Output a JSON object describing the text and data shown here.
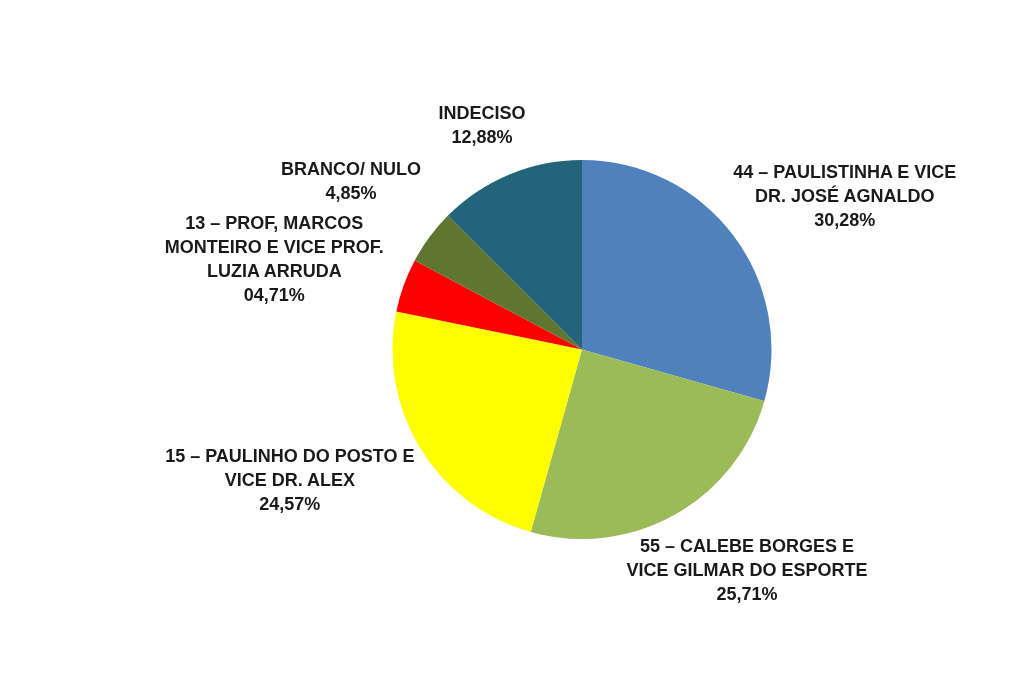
{
  "chart_data": {
    "type": "pie",
    "categories": [
      "44 – PAULISTINHA E VICE DR. JOSÉ AGNALDO",
      "55 – CALEBE BORGES E VICE GILMAR DO ESPORTE",
      "15 – PAULINHO DO POSTO E VICE DR. ALEX",
      "13 – PROF, MARCOS MONTEIRO E VICE PROF. LUZIA ARRUDA",
      "BRANCO/ NULO",
      "INDECISO"
    ],
    "values": [
      30.28,
      25.71,
      24.57,
      4.71,
      4.85,
      12.88
    ],
    "colors": [
      "#4f81bd",
      "#9bbb59",
      "#ffff00",
      "#ff0000",
      "#5f7530",
      "#24647a"
    ],
    "value_labels": [
      "30,28%",
      "25,71%",
      "24,57%",
      "04,71%",
      "4,85%",
      "12,88%"
    ]
  }
}
